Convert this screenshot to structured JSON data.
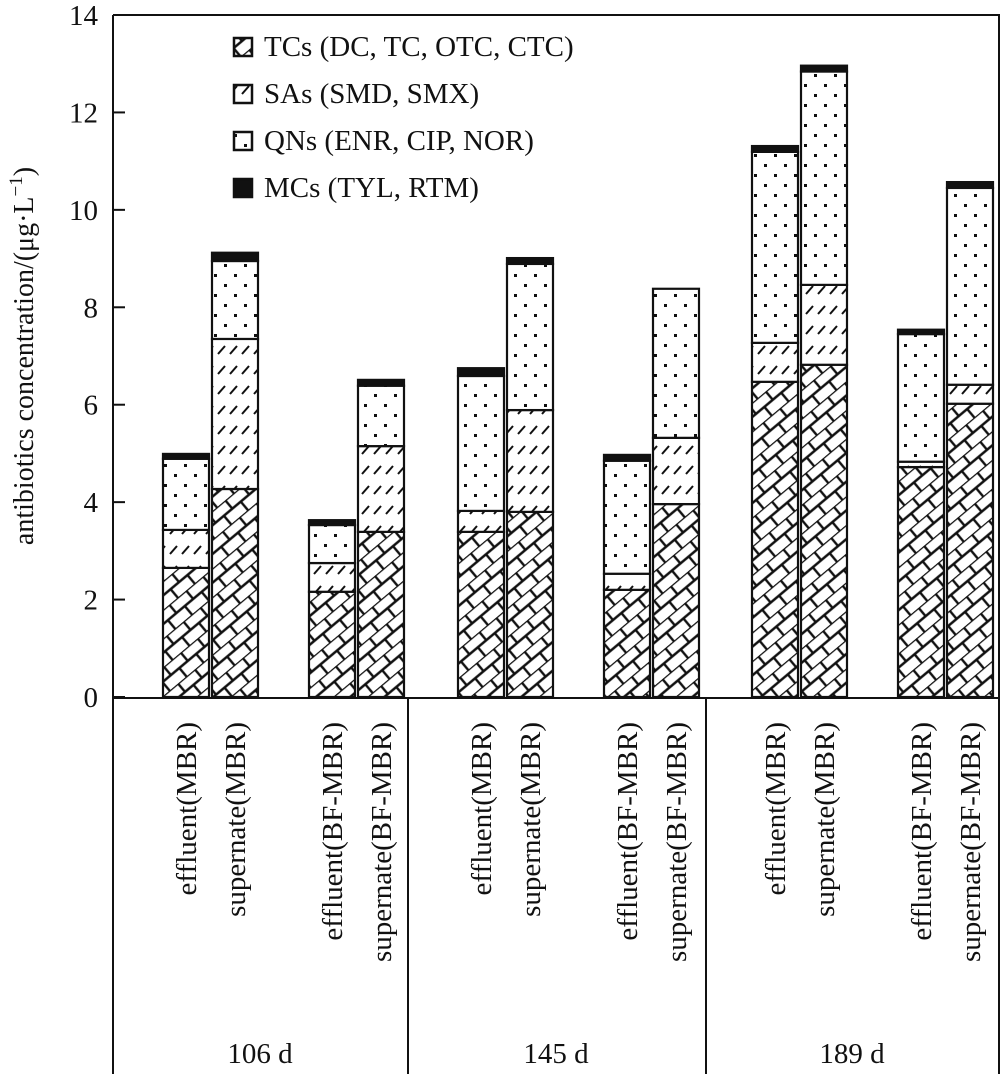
{
  "chart_data": {
    "type": "bar",
    "stacked": true,
    "title": "",
    "ylabel": "antibiotics concentration/(μg·L⁻¹)",
    "ylabel_main": "antibiotics concentration/(μg·L",
    "ylabel_sup": "−1",
    "ylabel_close": ")",
    "xlabel": "",
    "ylim": [
      0,
      14
    ],
    "yticks": [
      0,
      2,
      4,
      6,
      8,
      10,
      12,
      14
    ],
    "grid": false,
    "legend_position": "top-left",
    "groups": [
      {
        "label": "106 d",
        "categories": [
          "effluent(MBR)",
          "supernate(MBR)",
          "effluent(BF-MBR)",
          "supernate(BF-MBR)"
        ]
      },
      {
        "label": "145 d",
        "categories": [
          "effluent(MBR)",
          "supernate(MBR)",
          "effluent(BF-MBR)",
          "supernate(BF-MBR)"
        ]
      },
      {
        "label": "189 d",
        "categories": [
          "effluent(MBR)",
          "supernate(MBR)",
          "effluent(BF-MBR)",
          "supernate(BF-MBR)"
        ]
      }
    ],
    "series": [
      {
        "name": "TCs (DC, TC, OTC, CTC)",
        "pattern": "brick",
        "values": [
          2.65,
          4.27,
          2.16,
          3.39,
          3.39,
          3.8,
          2.2,
          3.96,
          6.47,
          6.82,
          4.72,
          6.02
        ]
      },
      {
        "name": "SAs (SMD, SMX)",
        "pattern": "hatch",
        "values": [
          0.78,
          3.08,
          0.59,
          1.76,
          0.43,
          2.09,
          0.33,
          1.36,
          0.8,
          1.64,
          0.11,
          0.39
        ]
      },
      {
        "name": "QNs (ENR, CIP, NOR)",
        "pattern": "dots",
        "values": [
          1.46,
          1.6,
          0.78,
          1.24,
          2.77,
          3.0,
          2.32,
          3.06,
          3.92,
          4.38,
          2.62,
          4.04
        ]
      },
      {
        "name": "MCs (TYL, RTM)",
        "pattern": "solid",
        "values": [
          0.1,
          0.17,
          0.1,
          0.12,
          0.16,
          0.12,
          0.12,
          0.0,
          0.12,
          0.12,
          0.09,
          0.12
        ]
      }
    ]
  }
}
